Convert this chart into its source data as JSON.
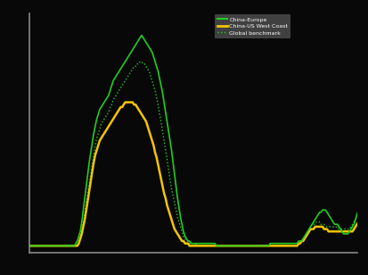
{
  "background_color": "#080808",
  "plot_bg_color": "#080808",
  "legend_bg_color": "#404040",
  "line1_color": "#22cc22",
  "line2_color": "#f5c400",
  "line3_color": "#22cc22",
  "legend_labels": [
    "China-Europe",
    "China-US West Coast",
    "Global benchmark"
  ],
  "xlim": [
    0,
    219
  ],
  "ylim": [
    0,
    1.0
  ],
  "spine_color": "#888888",
  "figsize": [
    4.13,
    3.08
  ],
  "dpi": 100,
  "series1": [
    0.03,
    0.03,
    0.03,
    0.03,
    0.03,
    0.03,
    0.03,
    0.03,
    0.03,
    0.03,
    0.03,
    0.03,
    0.03,
    0.03,
    0.03,
    0.03,
    0.03,
    0.03,
    0.03,
    0.03,
    0.03,
    0.03,
    0.03,
    0.03,
    0.03,
    0.03,
    0.03,
    0.03,
    0.03,
    0.03,
    0.03,
    0.04,
    0.05,
    0.07,
    0.09,
    0.13,
    0.18,
    0.23,
    0.28,
    0.33,
    0.38,
    0.42,
    0.46,
    0.5,
    0.53,
    0.56,
    0.58,
    0.6,
    0.61,
    0.62,
    0.63,
    0.64,
    0.65,
    0.66,
    0.68,
    0.7,
    0.72,
    0.73,
    0.74,
    0.75,
    0.76,
    0.77,
    0.78,
    0.79,
    0.8,
    0.81,
    0.82,
    0.83,
    0.84,
    0.85,
    0.86,
    0.87,
    0.88,
    0.89,
    0.9,
    0.91,
    0.9,
    0.89,
    0.88,
    0.87,
    0.86,
    0.85,
    0.84,
    0.82,
    0.8,
    0.78,
    0.76,
    0.73,
    0.7,
    0.67,
    0.63,
    0.59,
    0.55,
    0.51,
    0.47,
    0.43,
    0.38,
    0.33,
    0.28,
    0.23,
    0.19,
    0.15,
    0.12,
    0.09,
    0.07,
    0.06,
    0.05,
    0.05,
    0.04,
    0.04,
    0.04,
    0.04,
    0.04,
    0.04,
    0.04,
    0.04,
    0.04,
    0.04,
    0.04,
    0.04,
    0.04,
    0.04,
    0.04,
    0.04,
    0.04,
    0.03,
    0.03,
    0.03,
    0.03,
    0.03,
    0.03,
    0.03,
    0.03,
    0.03,
    0.03,
    0.03,
    0.03,
    0.03,
    0.03,
    0.03,
    0.03,
    0.03,
    0.03,
    0.03,
    0.03,
    0.03,
    0.03,
    0.03,
    0.03,
    0.03,
    0.03,
    0.03,
    0.03,
    0.03,
    0.03,
    0.03,
    0.03,
    0.03,
    0.03,
    0.03,
    0.03,
    0.04,
    0.04,
    0.04,
    0.04,
    0.04,
    0.04,
    0.04,
    0.04,
    0.04,
    0.04,
    0.04,
    0.04,
    0.04,
    0.04,
    0.04,
    0.04,
    0.04,
    0.04,
    0.04,
    0.05,
    0.05,
    0.05,
    0.06,
    0.07,
    0.08,
    0.09,
    0.1,
    0.11,
    0.12,
    0.13,
    0.14,
    0.15,
    0.16,
    0.17,
    0.17,
    0.18,
    0.18,
    0.18,
    0.17,
    0.16,
    0.15,
    0.14,
    0.13,
    0.12,
    0.12,
    0.12,
    0.11,
    0.1,
    0.09,
    0.08,
    0.08,
    0.08,
    0.08,
    0.09,
    0.1,
    0.11,
    0.12,
    0.14,
    0.16,
    0.18,
    0.2
  ],
  "series2": [
    0.03,
    0.03,
    0.03,
    0.03,
    0.03,
    0.03,
    0.03,
    0.03,
    0.03,
    0.03,
    0.03,
    0.03,
    0.03,
    0.03,
    0.03,
    0.03,
    0.03,
    0.03,
    0.03,
    0.03,
    0.03,
    0.03,
    0.03,
    0.03,
    0.03,
    0.03,
    0.03,
    0.03,
    0.03,
    0.03,
    0.03,
    0.03,
    0.03,
    0.04,
    0.06,
    0.08,
    0.11,
    0.14,
    0.18,
    0.22,
    0.26,
    0.3,
    0.34,
    0.38,
    0.41,
    0.43,
    0.45,
    0.47,
    0.48,
    0.49,
    0.5,
    0.51,
    0.52,
    0.53,
    0.54,
    0.55,
    0.56,
    0.57,
    0.58,
    0.59,
    0.6,
    0.61,
    0.61,
    0.62,
    0.63,
    0.63,
    0.63,
    0.63,
    0.63,
    0.63,
    0.62,
    0.62,
    0.61,
    0.6,
    0.59,
    0.58,
    0.57,
    0.56,
    0.55,
    0.53,
    0.51,
    0.49,
    0.47,
    0.45,
    0.42,
    0.4,
    0.37,
    0.34,
    0.31,
    0.28,
    0.25,
    0.23,
    0.2,
    0.18,
    0.16,
    0.14,
    0.12,
    0.1,
    0.09,
    0.08,
    0.07,
    0.06,
    0.05,
    0.05,
    0.04,
    0.04,
    0.04,
    0.03,
    0.03,
    0.03,
    0.03,
    0.03,
    0.03,
    0.03,
    0.03,
    0.03,
    0.03,
    0.03,
    0.03,
    0.03,
    0.03,
    0.03,
    0.03,
    0.03,
    0.03,
    0.03,
    0.03,
    0.03,
    0.03,
    0.03,
    0.03,
    0.03,
    0.03,
    0.03,
    0.03,
    0.03,
    0.03,
    0.03,
    0.03,
    0.03,
    0.03,
    0.03,
    0.03,
    0.03,
    0.03,
    0.03,
    0.03,
    0.03,
    0.03,
    0.03,
    0.03,
    0.03,
    0.03,
    0.03,
    0.03,
    0.03,
    0.03,
    0.03,
    0.03,
    0.03,
    0.03,
    0.03,
    0.03,
    0.03,
    0.03,
    0.03,
    0.03,
    0.03,
    0.03,
    0.03,
    0.03,
    0.03,
    0.03,
    0.03,
    0.03,
    0.03,
    0.03,
    0.03,
    0.03,
    0.03,
    0.04,
    0.04,
    0.05,
    0.05,
    0.06,
    0.07,
    0.08,
    0.09,
    0.1,
    0.1,
    0.1,
    0.11,
    0.11,
    0.11,
    0.11,
    0.11,
    0.11,
    0.1,
    0.1,
    0.1,
    0.09,
    0.09,
    0.09,
    0.09,
    0.09,
    0.09,
    0.09,
    0.09,
    0.09,
    0.09,
    0.09,
    0.09,
    0.09,
    0.09,
    0.09,
    0.09,
    0.09,
    0.1,
    0.11,
    0.12,
    0.13,
    0.14
  ],
  "series3": [
    0.03,
    0.03,
    0.03,
    0.03,
    0.03,
    0.03,
    0.03,
    0.03,
    0.03,
    0.03,
    0.03,
    0.03,
    0.03,
    0.03,
    0.03,
    0.03,
    0.03,
    0.03,
    0.03,
    0.03,
    0.03,
    0.03,
    0.03,
    0.03,
    0.03,
    0.03,
    0.03,
    0.03,
    0.03,
    0.03,
    0.03,
    0.03,
    0.03,
    0.05,
    0.07,
    0.1,
    0.13,
    0.17,
    0.21,
    0.25,
    0.29,
    0.33,
    0.37,
    0.41,
    0.45,
    0.48,
    0.5,
    0.52,
    0.54,
    0.55,
    0.56,
    0.57,
    0.58,
    0.59,
    0.61,
    0.62,
    0.64,
    0.65,
    0.66,
    0.67,
    0.68,
    0.69,
    0.7,
    0.71,
    0.72,
    0.73,
    0.74,
    0.75,
    0.76,
    0.77,
    0.78,
    0.78,
    0.79,
    0.79,
    0.8,
    0.8,
    0.79,
    0.79,
    0.78,
    0.77,
    0.76,
    0.74,
    0.72,
    0.7,
    0.68,
    0.65,
    0.62,
    0.58,
    0.55,
    0.51,
    0.47,
    0.43,
    0.39,
    0.35,
    0.31,
    0.27,
    0.24,
    0.21,
    0.18,
    0.15,
    0.13,
    0.11,
    0.09,
    0.07,
    0.06,
    0.05,
    0.05,
    0.04,
    0.04,
    0.04,
    0.04,
    0.04,
    0.03,
    0.03,
    0.03,
    0.03,
    0.03,
    0.03,
    0.03,
    0.03,
    0.03,
    0.03,
    0.03,
    0.03,
    0.03,
    0.03,
    0.03,
    0.03,
    0.03,
    0.03,
    0.03,
    0.03,
    0.03,
    0.03,
    0.03,
    0.03,
    0.03,
    0.03,
    0.03,
    0.03,
    0.03,
    0.03,
    0.03,
    0.03,
    0.03,
    0.03,
    0.03,
    0.03,
    0.03,
    0.03,
    0.03,
    0.03,
    0.03,
    0.03,
    0.03,
    0.03,
    0.03,
    0.03,
    0.03,
    0.03,
    0.03,
    0.03,
    0.03,
    0.03,
    0.03,
    0.03,
    0.03,
    0.03,
    0.03,
    0.03,
    0.03,
    0.03,
    0.03,
    0.03,
    0.03,
    0.03,
    0.03,
    0.03,
    0.03,
    0.03,
    0.04,
    0.04,
    0.05,
    0.06,
    0.07,
    0.08,
    0.09,
    0.1,
    0.11,
    0.12,
    0.12,
    0.12,
    0.13,
    0.13,
    0.13,
    0.12,
    0.12,
    0.12,
    0.11,
    0.11,
    0.11,
    0.11,
    0.11,
    0.11,
    0.11,
    0.11,
    0.1,
    0.1,
    0.1,
    0.1,
    0.1,
    0.1,
    0.1,
    0.1,
    0.1,
    0.11,
    0.12,
    0.13,
    0.14,
    0.15,
    0.16,
    0.17
  ]
}
